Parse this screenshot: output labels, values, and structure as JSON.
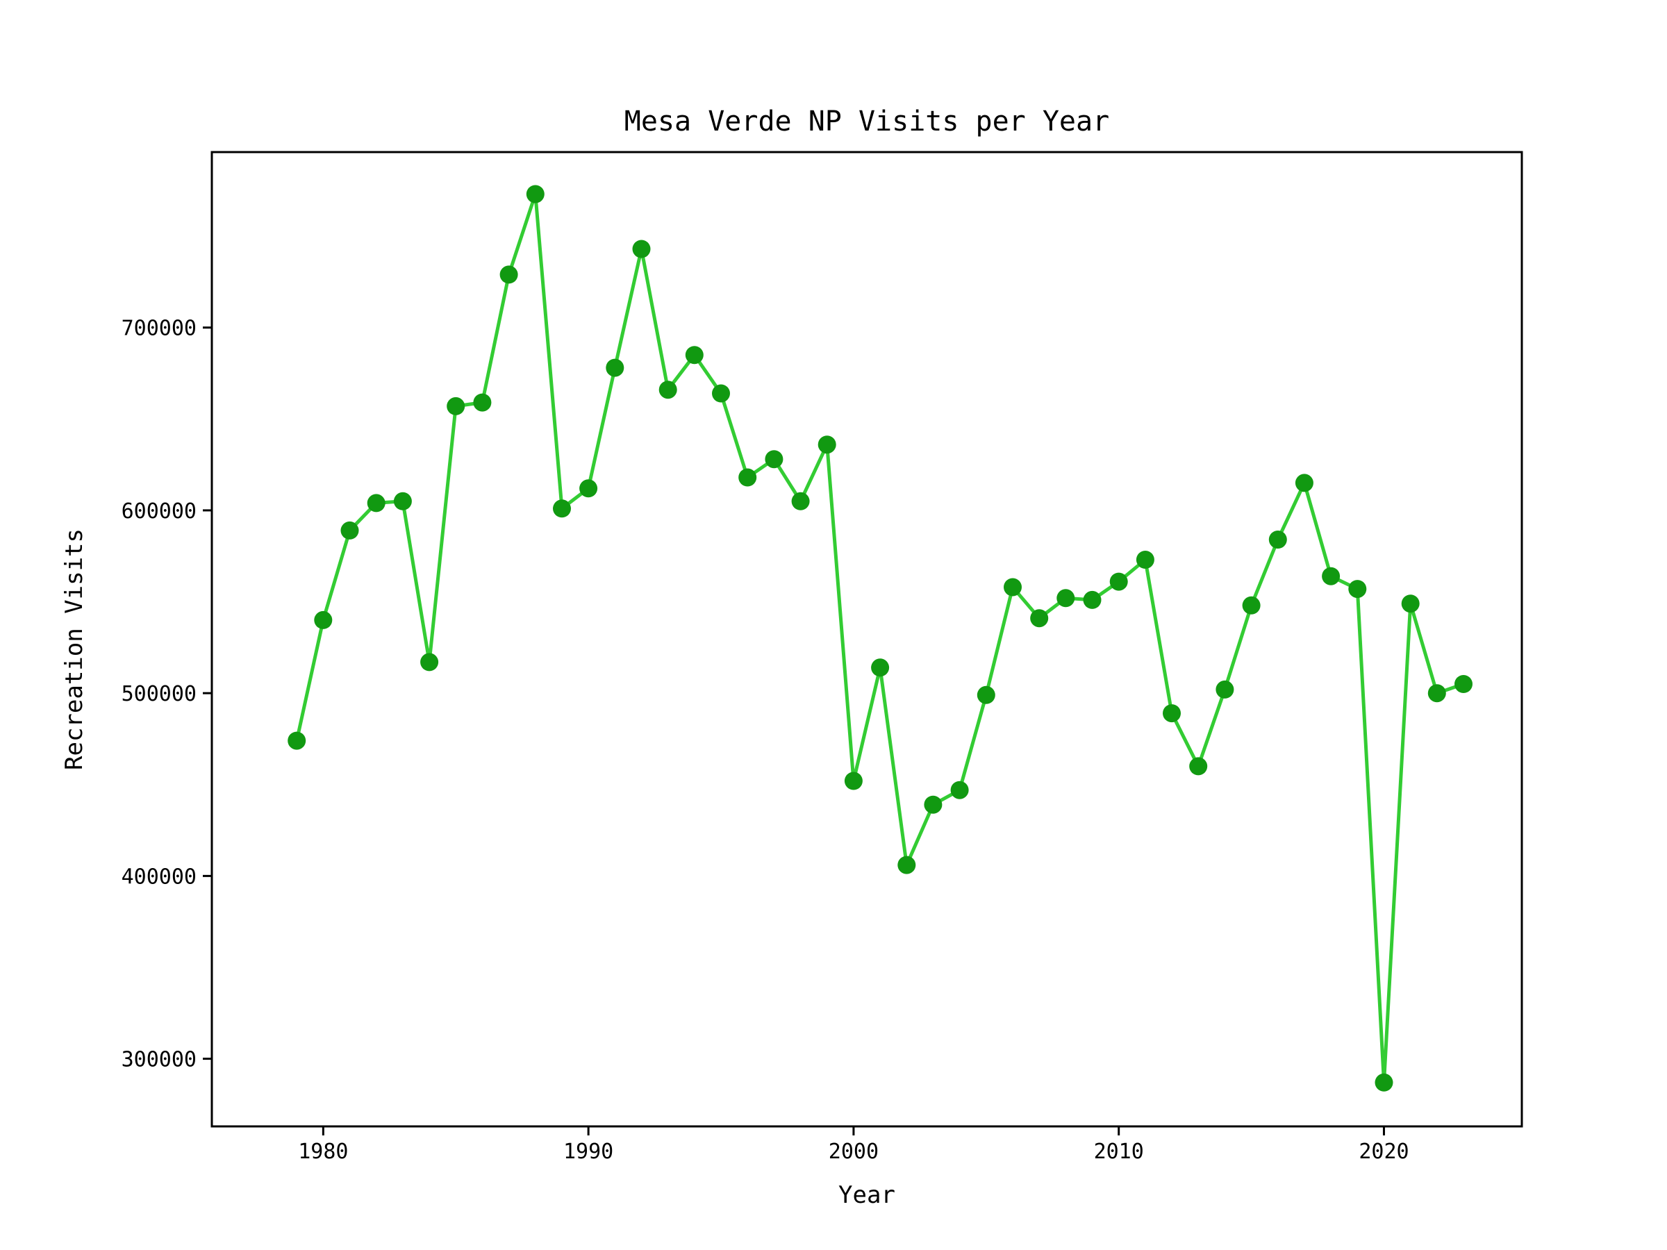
{
  "chart_data": {
    "type": "line",
    "title": "Mesa Verde NP Visits per Year",
    "xlabel": "Year",
    "ylabel": "Recreation Visits",
    "xlim": [
      1975.8,
      2025.2
    ],
    "ylim": [
      263000,
      796000
    ],
    "xticks": [
      1980,
      1990,
      2000,
      2010,
      2020
    ],
    "yticks": [
      300000,
      400000,
      500000,
      600000,
      700000
    ],
    "grid": false,
    "colors": {
      "line": "#33cc33",
      "marker": "#119911"
    },
    "series": [
      {
        "x": [
          1979,
          1980,
          1981,
          1982,
          1983,
          1984,
          1985,
          1986,
          1987,
          1988,
          1989,
          1990,
          1991,
          1992,
          1993,
          1994,
          1995,
          1996,
          1997,
          1998,
          1999,
          2000,
          2001,
          2002,
          2003,
          2004,
          2005,
          2006,
          2007,
          2008,
          2009,
          2010,
          2011,
          2012,
          2013,
          2014,
          2015,
          2016,
          2017,
          2018,
          2019,
          2020,
          2021,
          2022,
          2023
        ],
        "values": [
          474000,
          540000,
          589000,
          604000,
          605000,
          517000,
          657000,
          659000,
          729000,
          773000,
          601000,
          612000,
          678000,
          743000,
          666000,
          685000,
          664000,
          618000,
          628000,
          605000,
          636000,
          452000,
          514000,
          406000,
          439000,
          447000,
          499000,
          558000,
          541000,
          552000,
          551000,
          561000,
          573000,
          489000,
          460000,
          502000,
          548000,
          584000,
          615000,
          564000,
          557000,
          287000,
          549000,
          500000,
          505000
        ]
      }
    ]
  }
}
